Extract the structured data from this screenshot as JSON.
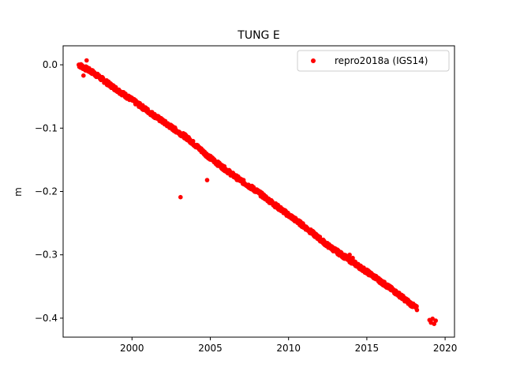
{
  "chart_data": {
    "type": "scatter",
    "title": "TUNG E",
    "xlabel": "",
    "ylabel": "m",
    "xlim": [
      1995.6,
      2020.6
    ],
    "ylim": [
      -0.43,
      0.03
    ],
    "xticks": [
      2000,
      2005,
      2010,
      2015,
      2020
    ],
    "xtick_labels": [
      "2000",
      "2005",
      "2010",
      "2015",
      "2020"
    ],
    "yticks": [
      0.0,
      -0.1,
      -0.2,
      -0.3,
      -0.4
    ],
    "ytick_labels": [
      "0.0",
      "−0.1",
      "−0.2",
      "−0.3",
      "−0.4"
    ],
    "grid": false,
    "legend_position": "top-right",
    "series": [
      {
        "name": "repro2018a (IGS14)",
        "color": "#ff0000",
        "marker": "circle",
        "trend": {
          "x": [
            1996.6,
            1997.5,
            1998.5,
            1999.5,
            2000.5,
            2002.0,
            2003.5,
            2005.0,
            2006.5,
            2008.0,
            2009.5,
            2011.0,
            2012.5,
            2014.0,
            2015.5,
            2017.0,
            2018.2
          ],
          "y": [
            0.0,
            -0.012,
            -0.03,
            -0.047,
            -0.064,
            -0.09,
            -0.115,
            -0.147,
            -0.175,
            -0.2,
            -0.228,
            -0.255,
            -0.285,
            -0.31,
            -0.335,
            -0.362,
            -0.385
          ]
        },
        "x_start": 1996.6,
        "x_end": 2018.2,
        "late_segment": {
          "x": [
            2019.0,
            2019.1,
            2019.2,
            2019.3,
            2019.4
          ],
          "y": [
            -0.403,
            -0.407,
            -0.401,
            -0.409,
            -0.404
          ]
        },
        "outliers": {
          "x": [
            1997.1,
            1996.9,
            2003.1,
            2004.8,
            2013.9,
            2014.1
          ],
          "y": [
            0.007,
            -0.017,
            -0.209,
            -0.182,
            -0.3,
            -0.305
          ]
        }
      }
    ]
  }
}
